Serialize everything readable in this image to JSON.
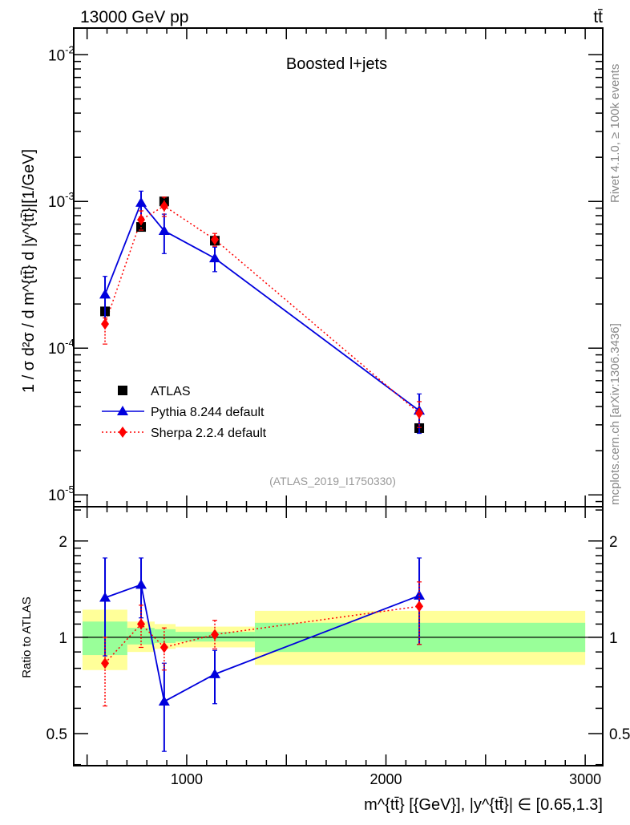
{
  "header": {
    "energy_label": "13000 GeV pp",
    "process_label": "tt̄",
    "side_rivet": "Rivet 4.1.0, ≥ 100k events",
    "side_mcplots": "mcplots.cern.ch [arXiv:1306.3436]",
    "analysis_id": "(ATLAS_2019_I1750330)"
  },
  "chart_data": [
    {
      "type": "scatter",
      "title": "Boosted l+jets",
      "xlabel": "m^{tt̄} [{GeV}], |y^{tt̄}| ∈ [0.65,1.3]",
      "ylabel": "1 / σ d²σ / d m^{tt̄} d |y^{tt̄}|[1/GeV]",
      "yscale": "log",
      "xlim": [
        433,
        3088
      ],
      "ylim": [
        8.3e-06,
        0.0152
      ],
      "ytick_labels": [
        "10^{-5}",
        "10^{-4}",
        "10^{-3}",
        "10^{-2}"
      ],
      "legend_position": "bottom-left",
      "x": [
        590,
        771,
        887,
        1141,
        2167
      ],
      "series": [
        {
          "name": "ATLAS",
          "color": "#000000",
          "marker": "square",
          "values": [
            0.000178,
            0.00067,
            0.001,
            0.00054,
            2.85e-05
          ]
        },
        {
          "name": "Pythia 8.244 default",
          "color": "#0000dd",
          "marker": "triangle",
          "line": "solid",
          "values": [
            0.000232,
            0.00098,
            0.00063,
            0.00041,
            3.75e-05
          ],
          "err_up": [
            0.33,
            0.2,
            0.3,
            0.19,
            0.3
          ],
          "err_down": [
            0.35,
            0.2,
            0.3,
            0.19,
            0.3
          ]
        },
        {
          "name": "Sherpa 2.2.4 default",
          "color": "#ff0000",
          "marker": "diamond",
          "line": "dotted",
          "values": [
            0.000146,
            0.00075,
            0.00093,
            0.00055,
            3.6e-05
          ],
          "err_up": [
            0.1,
            0.15,
            0.15,
            0.1,
            0.2
          ],
          "err_down": [
            0.27,
            0.15,
            0.15,
            0.1,
            0.2
          ]
        }
      ]
    },
    {
      "type": "scatter",
      "ylabel": "Ratio to ATLAS",
      "yscale": "log",
      "ylim": [
        0.397,
        2.56
      ],
      "xticks": [
        1000,
        2000,
        3000
      ],
      "xtick_labels": [
        "1000",
        "2000",
        "3000"
      ],
      "yticks": [
        0.5,
        1,
        2
      ],
      "ytick_labels": [
        "0.5",
        "1",
        "2"
      ],
      "bin_edges": [
        477,
        702,
        839,
        944,
        1342,
        3000
      ],
      "band_yellow": [
        [
          0.79,
          1.22
        ],
        [
          0.9,
          1.12
        ],
        [
          0.92,
          1.1
        ],
        [
          0.93,
          1.08
        ],
        [
          0.82,
          1.21
        ]
      ],
      "band_green": [
        [
          0.88,
          1.12
        ],
        [
          0.95,
          1.07
        ],
        [
          0.96,
          1.06
        ],
        [
          0.97,
          1.04
        ],
        [
          0.9,
          1.11
        ]
      ],
      "x": [
        590,
        771,
        887,
        1141,
        2167
      ],
      "series": [
        {
          "name": "Pythia 8.244 default",
          "color": "#0000dd",
          "values": [
            1.33,
            1.46,
            0.63,
            0.767,
            1.35
          ],
          "err_low": [
            0.875,
            1.15,
            0.44,
            0.62,
            0.95
          ],
          "err_high": [
            1.77,
            1.77,
            0.83,
            0.91,
            1.77
          ]
        },
        {
          "name": "Sherpa 2.2.4 default",
          "color": "#ff0000",
          "values": [
            0.83,
            1.1,
            0.93,
            1.02,
            1.25
          ],
          "err_low": [
            0.61,
            0.93,
            0.79,
            0.92,
            0.95
          ],
          "err_high": [
            1.0,
            1.26,
            1.07,
            1.13,
            1.49
          ]
        }
      ]
    }
  ]
}
